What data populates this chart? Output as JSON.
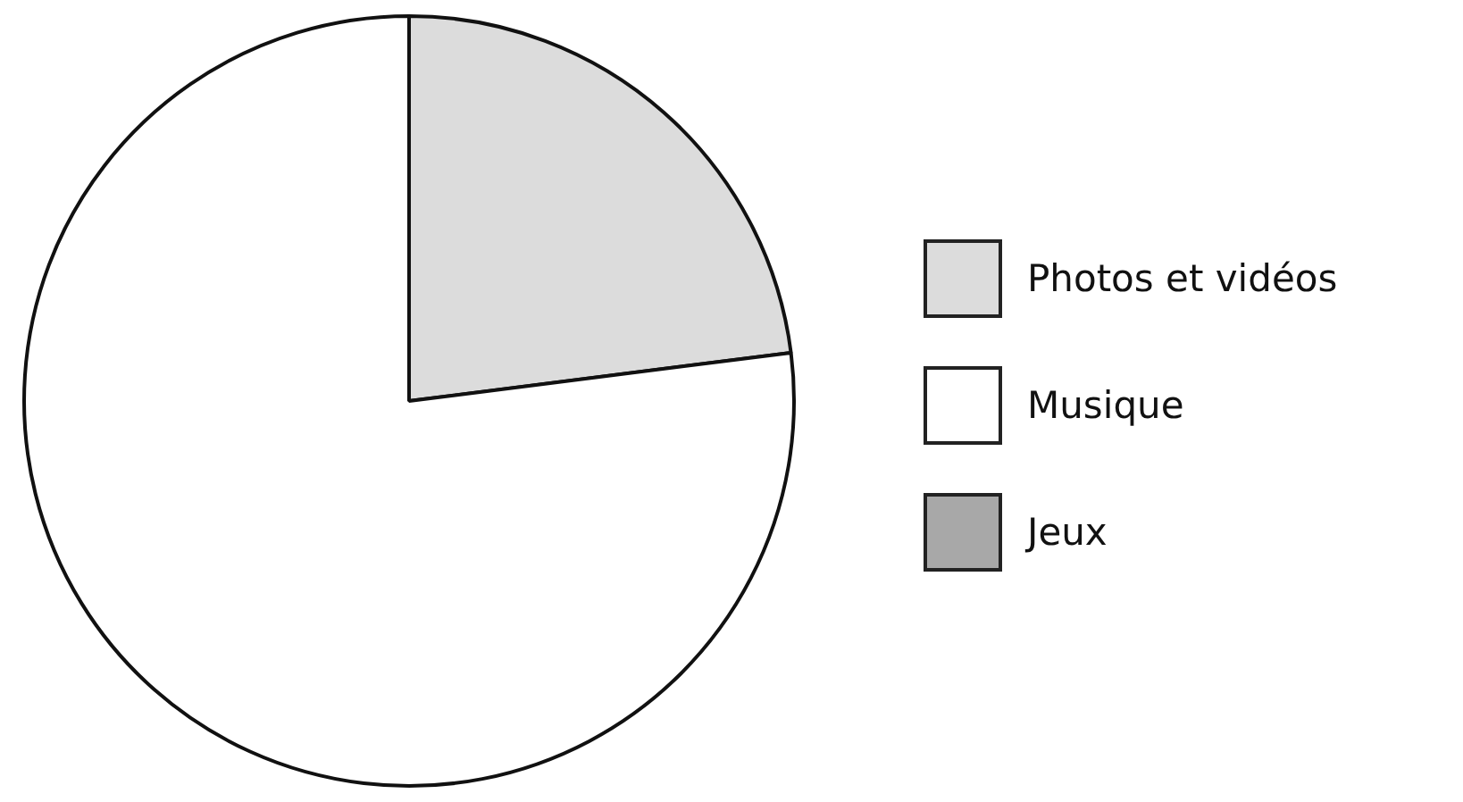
{
  "chart_data": {
    "type": "pie",
    "categories": [
      "Photos et vidéos",
      "Musique",
      "Jeux"
    ],
    "values": [
      23,
      77,
      0
    ],
    "colors": [
      "#dcdcdc",
      "#ffffff",
      "#a8a8a8"
    ],
    "legend": "right"
  }
}
